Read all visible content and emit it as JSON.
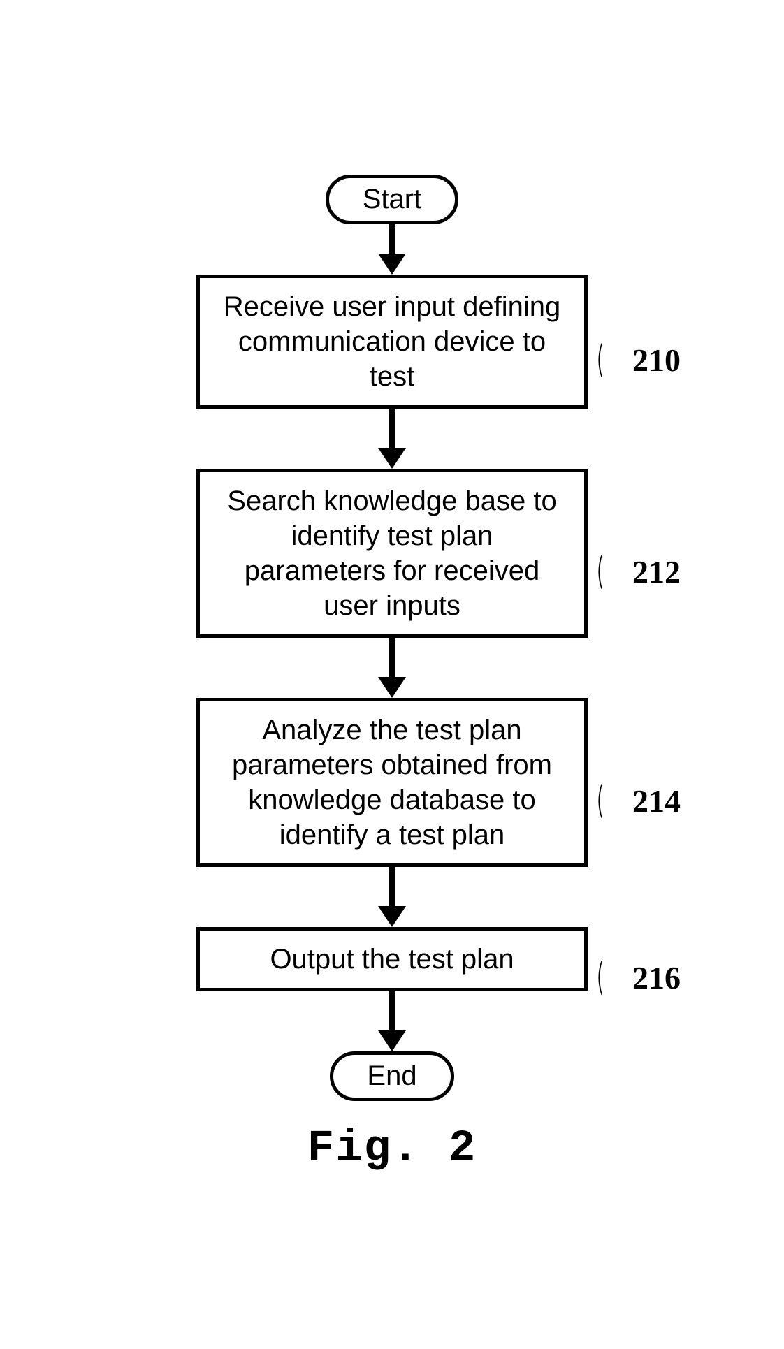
{
  "flowchart": {
    "type": "flowchart",
    "background_color": "#ffffff",
    "stroke_color": "#000000",
    "stroke_width": 5,
    "font_family": "Arial",
    "node_fontsize": 40,
    "ref_fontsize": 46,
    "ref_font_family": "Times New Roman",
    "caption_fontsize": 64,
    "caption_font_family": "Courier New",
    "arrow_shaft_width": 10,
    "arrow_head_width": 40,
    "arrow_head_height": 30,
    "terminal_border_radius": 999,
    "nodes": {
      "start": {
        "shape": "terminal",
        "label": "Start"
      },
      "n210": {
        "shape": "process",
        "label": "Receive user input defining communication device to test",
        "ref": "210",
        "height_lines": 2
      },
      "n212": {
        "shape": "process",
        "label": "Search knowledge base to identify test plan parameters for received user inputs",
        "ref": "212",
        "height_lines": 3
      },
      "n214": {
        "shape": "process",
        "label": "Analyze the test plan parameters obtained from knowledge database to identify a test plan",
        "ref": "214",
        "height_lines": 4
      },
      "n216": {
        "shape": "process",
        "label": "Output the test plan",
        "ref": "216",
        "height_lines": 1
      },
      "end": {
        "shape": "terminal",
        "label": "End"
      }
    },
    "edges": [
      {
        "from": "start",
        "to": "n210",
        "length": 44
      },
      {
        "from": "n210",
        "to": "n212",
        "length": 58
      },
      {
        "from": "n212",
        "to": "n214",
        "length": 58
      },
      {
        "from": "n214",
        "to": "n216",
        "length": 58
      },
      {
        "from": "n216",
        "to": "end",
        "length": 58
      }
    ],
    "caption": "Fig. 2"
  }
}
